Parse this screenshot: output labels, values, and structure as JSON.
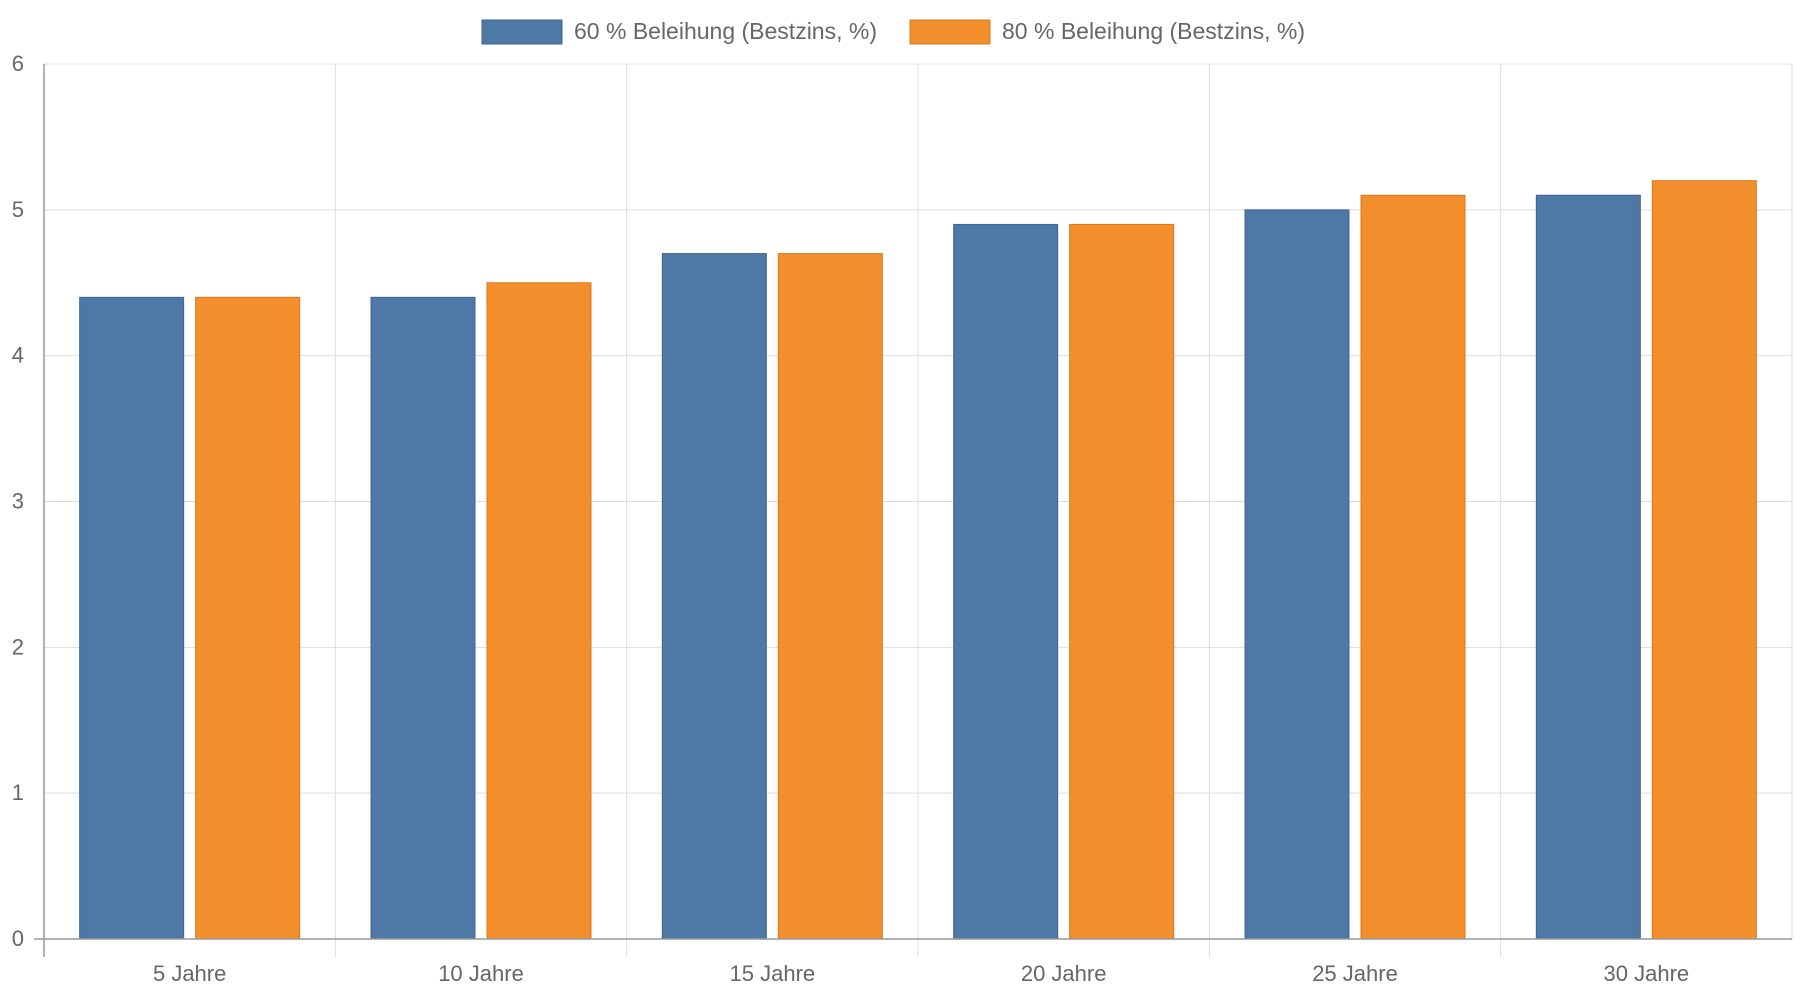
{
  "colors": {
    "series_1": "#4e78a5",
    "series_1_stroke": "#3f6591",
    "series_2": "#f28e2b",
    "series_2_stroke": "#d97a1f",
    "grid": "#dddddd",
    "axis": "#999999",
    "text": "#666666"
  },
  "chart_data": {
    "type": "bar",
    "title": "",
    "xlabel": "",
    "ylabel": "",
    "categories": [
      "5 Jahre",
      "10 Jahre",
      "15 Jahre",
      "20 Jahre",
      "25 Jahre",
      "30 Jahre"
    ],
    "series": [
      {
        "name": "60 % Beleihung (Bestzins, %)",
        "values": [
          4.4,
          4.4,
          4.7,
          4.9,
          5.0,
          5.1
        ]
      },
      {
        "name": "80 % Beleihung (Bestzins, %)",
        "values": [
          4.4,
          4.5,
          4.7,
          4.9,
          5.1,
          5.2
        ]
      }
    ],
    "ylim": [
      0,
      6
    ],
    "yticks": [
      "0",
      "1",
      "2",
      "3",
      "4",
      "5",
      "6"
    ],
    "grid": true,
    "legend_position": "top-center"
  }
}
